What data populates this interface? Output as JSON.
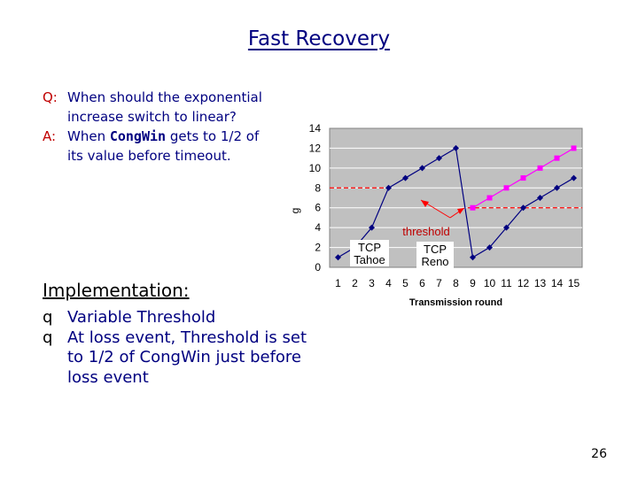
{
  "title": "Fast Recovery",
  "qa": {
    "q_prefix": "Q:",
    "q_text": "When should the exponential increase switch to linear?",
    "a_prefix": "A:",
    "a_before": "When ",
    "a_code": "CongWin",
    "a_after": " gets to 1/2 of its value before timeout."
  },
  "implementation": {
    "heading": "Implementation:",
    "bullet_mark": "q",
    "items": [
      "Variable Threshold",
      "At loss event, Threshold is set to 1/2 of CongWin just before loss event"
    ]
  },
  "slide_number": "26",
  "colors": {
    "title": "#000080",
    "body_text": "#000080",
    "qa_prefix": "#c00000",
    "plot_bg": "#c0c0c0",
    "tahoe": "#000080",
    "reno": "#ff00ff",
    "threshold": "#ff0000"
  },
  "chart_data": {
    "type": "line",
    "xlabel": "Transmission round",
    "ylabel": "congestion window size (segments)",
    "ylabel_fragment": "g",
    "xticks": [
      "1",
      "2",
      "3",
      "4",
      "5",
      "6",
      "7",
      "8",
      "9",
      "10",
      "11",
      "12",
      "13",
      "14",
      "15"
    ],
    "yticks": [
      "0",
      "2",
      "4",
      "6",
      "8",
      "10",
      "12",
      "14"
    ],
    "xlim": [
      0.5,
      15.5
    ],
    "ylim": [
      0,
      14
    ],
    "series": [
      {
        "name": "TCP Tahoe",
        "label_lines": [
          "TCP",
          "Tahoe"
        ],
        "x": [
          1,
          2,
          3,
          4,
          5,
          6,
          7,
          8,
          9,
          10,
          11,
          12,
          13,
          14,
          15
        ],
        "y": [
          1,
          2,
          4,
          8,
          9,
          10,
          11,
          12,
          1,
          2,
          4,
          6,
          7,
          8,
          9
        ]
      },
      {
        "name": "TCP Reno",
        "label_lines": [
          "TCP",
          "Reno"
        ],
        "x": [
          9,
          10,
          11,
          12,
          13,
          14,
          15
        ],
        "y": [
          6,
          7,
          8,
          9,
          10,
          11,
          12
        ]
      }
    ],
    "threshold_label": "threshold",
    "threshold_levels": [
      {
        "x_start": 0.5,
        "x_end": 4,
        "y": 8
      },
      {
        "x_start": 8.7,
        "x_end": 15.5,
        "y": 6
      }
    ]
  }
}
